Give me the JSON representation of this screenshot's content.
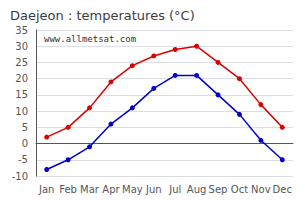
{
  "chart_data": {
    "type": "line",
    "title": "Daejeon : temperatures (°C)",
    "categories": [
      "Jan",
      "Feb",
      "Mar",
      "Apr",
      "May",
      "Jun",
      "Jul",
      "Aug",
      "Sep",
      "Oct",
      "Nov",
      "Dec"
    ],
    "series": [
      {
        "color": "#dd0000",
        "values": [
          2,
          5,
          11,
          19,
          24,
          27,
          29,
          30,
          25,
          20,
          12,
          5
        ]
      },
      {
        "color": "#0000cc",
        "values": [
          -8,
          -5,
          -1,
          6,
          11,
          17,
          21,
          21,
          15,
          9,
          1,
          -5
        ]
      }
    ],
    "ylim": [
      -10,
      35
    ],
    "yticks": [
      -10,
      -5,
      0,
      5,
      10,
      15,
      20,
      25,
      30,
      35
    ],
    "grid": true,
    "marker": "circle",
    "annotation": "www.allmetsat.com"
  }
}
